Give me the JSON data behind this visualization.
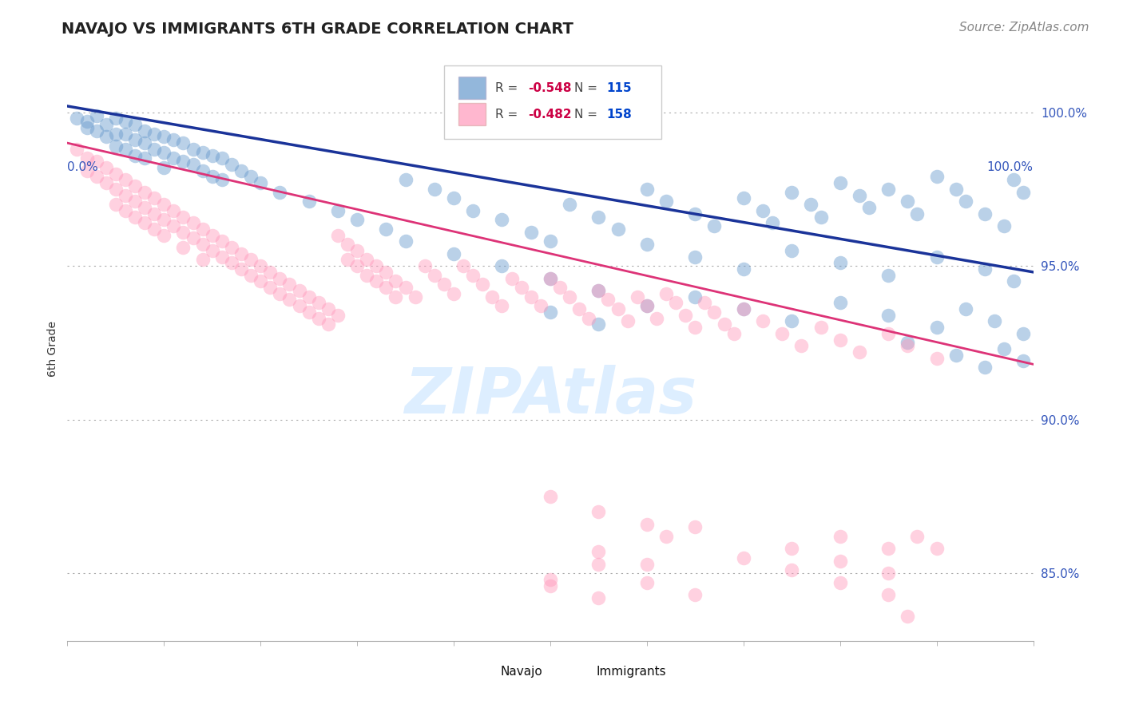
{
  "title": "NAVAJO VS IMMIGRANTS 6TH GRADE CORRELATION CHART",
  "source": "Source: ZipAtlas.com",
  "ylabel": "6th Grade",
  "yticks": [
    0.85,
    0.9,
    0.95,
    1.0
  ],
  "ytick_labels": [
    "85.0%",
    "90.0%",
    "95.0%",
    "100.0%"
  ],
  "xlim": [
    0.0,
    1.0
  ],
  "ylim": [
    0.828,
    1.018
  ],
  "navajo_color": "#6699cc",
  "immigrants_color": "#ff99bb",
  "navajo_line_color": "#1a3399",
  "immigrants_line_color": "#dd3377",
  "tick_color": "#3355bb",
  "navajo_R": -0.548,
  "navajo_N": 115,
  "immigrants_R": -0.482,
  "immigrants_N": 158,
  "background_color": "#ffffff",
  "watermark_color": "#ddeeff",
  "legend_R_color": "#cc0044",
  "legend_N_color": "#0044cc",
  "title_fontsize": 14,
  "axis_label_fontsize": 10,
  "tick_label_fontsize": 11,
  "source_fontsize": 11,
  "navajo_line_x0": 0.0,
  "navajo_line_y0": 1.002,
  "navajo_line_x1": 1.0,
  "navajo_line_y1": 0.948,
  "immigrants_line_x0": 0.0,
  "immigrants_line_y0": 0.99,
  "immigrants_line_x1": 1.0,
  "immigrants_line_y1": 0.918,
  "navajo_points": [
    [
      0.01,
      0.998
    ],
    [
      0.02,
      0.997
    ],
    [
      0.02,
      0.995
    ],
    [
      0.03,
      0.999
    ],
    [
      0.03,
      0.994
    ],
    [
      0.04,
      0.996
    ],
    [
      0.04,
      0.992
    ],
    [
      0.05,
      0.998
    ],
    [
      0.05,
      0.993
    ],
    [
      0.05,
      0.989
    ],
    [
      0.06,
      0.997
    ],
    [
      0.06,
      0.993
    ],
    [
      0.06,
      0.988
    ],
    [
      0.07,
      0.996
    ],
    [
      0.07,
      0.991
    ],
    [
      0.07,
      0.986
    ],
    [
      0.08,
      0.994
    ],
    [
      0.08,
      0.99
    ],
    [
      0.08,
      0.985
    ],
    [
      0.09,
      0.993
    ],
    [
      0.09,
      0.988
    ],
    [
      0.1,
      0.992
    ],
    [
      0.1,
      0.987
    ],
    [
      0.1,
      0.982
    ],
    [
      0.11,
      0.991
    ],
    [
      0.11,
      0.985
    ],
    [
      0.12,
      0.99
    ],
    [
      0.12,
      0.984
    ],
    [
      0.13,
      0.988
    ],
    [
      0.13,
      0.983
    ],
    [
      0.14,
      0.987
    ],
    [
      0.14,
      0.981
    ],
    [
      0.15,
      0.986
    ],
    [
      0.15,
      0.979
    ],
    [
      0.16,
      0.985
    ],
    [
      0.16,
      0.978
    ],
    [
      0.17,
      0.983
    ],
    [
      0.18,
      0.981
    ],
    [
      0.19,
      0.979
    ],
    [
      0.2,
      0.977
    ],
    [
      0.22,
      0.974
    ],
    [
      0.25,
      0.971
    ],
    [
      0.28,
      0.968
    ],
    [
      0.3,
      0.965
    ],
    [
      0.33,
      0.962
    ],
    [
      0.35,
      0.978
    ],
    [
      0.38,
      0.975
    ],
    [
      0.4,
      0.972
    ],
    [
      0.42,
      0.968
    ],
    [
      0.45,
      0.965
    ],
    [
      0.48,
      0.961
    ],
    [
      0.5,
      0.958
    ],
    [
      0.52,
      0.97
    ],
    [
      0.55,
      0.966
    ],
    [
      0.57,
      0.962
    ],
    [
      0.6,
      0.975
    ],
    [
      0.62,
      0.971
    ],
    [
      0.65,
      0.967
    ],
    [
      0.67,
      0.963
    ],
    [
      0.7,
      0.972
    ],
    [
      0.72,
      0.968
    ],
    [
      0.73,
      0.964
    ],
    [
      0.75,
      0.974
    ],
    [
      0.77,
      0.97
    ],
    [
      0.78,
      0.966
    ],
    [
      0.8,
      0.977
    ],
    [
      0.82,
      0.973
    ],
    [
      0.83,
      0.969
    ],
    [
      0.85,
      0.975
    ],
    [
      0.87,
      0.971
    ],
    [
      0.88,
      0.967
    ],
    [
      0.9,
      0.979
    ],
    [
      0.92,
      0.975
    ],
    [
      0.93,
      0.971
    ],
    [
      0.95,
      0.967
    ],
    [
      0.97,
      0.963
    ],
    [
      0.98,
      0.978
    ],
    [
      0.99,
      0.974
    ],
    [
      0.35,
      0.958
    ],
    [
      0.4,
      0.954
    ],
    [
      0.45,
      0.95
    ],
    [
      0.5,
      0.946
    ],
    [
      0.55,
      0.942
    ],
    [
      0.6,
      0.957
    ],
    [
      0.65,
      0.953
    ],
    [
      0.7,
      0.949
    ],
    [
      0.75,
      0.955
    ],
    [
      0.8,
      0.951
    ],
    [
      0.85,
      0.947
    ],
    [
      0.9,
      0.953
    ],
    [
      0.95,
      0.949
    ],
    [
      0.98,
      0.945
    ],
    [
      0.5,
      0.935
    ],
    [
      0.55,
      0.931
    ],
    [
      0.6,
      0.937
    ],
    [
      0.65,
      0.94
    ],
    [
      0.7,
      0.936
    ],
    [
      0.75,
      0.932
    ],
    [
      0.8,
      0.938
    ],
    [
      0.85,
      0.934
    ],
    [
      0.9,
      0.93
    ],
    [
      0.93,
      0.936
    ],
    [
      0.96,
      0.932
    ],
    [
      0.99,
      0.928
    ],
    [
      0.87,
      0.925
    ],
    [
      0.92,
      0.921
    ],
    [
      0.95,
      0.917
    ],
    [
      0.97,
      0.923
    ],
    [
      0.99,
      0.919
    ]
  ],
  "immigrants_points": [
    [
      0.01,
      0.988
    ],
    [
      0.02,
      0.985
    ],
    [
      0.02,
      0.981
    ],
    [
      0.03,
      0.984
    ],
    [
      0.03,
      0.979
    ],
    [
      0.04,
      0.982
    ],
    [
      0.04,
      0.977
    ],
    [
      0.05,
      0.98
    ],
    [
      0.05,
      0.975
    ],
    [
      0.05,
      0.97
    ],
    [
      0.06,
      0.978
    ],
    [
      0.06,
      0.973
    ],
    [
      0.06,
      0.968
    ],
    [
      0.07,
      0.976
    ],
    [
      0.07,
      0.971
    ],
    [
      0.07,
      0.966
    ],
    [
      0.08,
      0.974
    ],
    [
      0.08,
      0.969
    ],
    [
      0.08,
      0.964
    ],
    [
      0.09,
      0.972
    ],
    [
      0.09,
      0.967
    ],
    [
      0.09,
      0.962
    ],
    [
      0.1,
      0.97
    ],
    [
      0.1,
      0.965
    ],
    [
      0.1,
      0.96
    ],
    [
      0.11,
      0.968
    ],
    [
      0.11,
      0.963
    ],
    [
      0.12,
      0.966
    ],
    [
      0.12,
      0.961
    ],
    [
      0.12,
      0.956
    ],
    [
      0.13,
      0.964
    ],
    [
      0.13,
      0.959
    ],
    [
      0.14,
      0.962
    ],
    [
      0.14,
      0.957
    ],
    [
      0.14,
      0.952
    ],
    [
      0.15,
      0.96
    ],
    [
      0.15,
      0.955
    ],
    [
      0.16,
      0.958
    ],
    [
      0.16,
      0.953
    ],
    [
      0.17,
      0.956
    ],
    [
      0.17,
      0.951
    ],
    [
      0.18,
      0.954
    ],
    [
      0.18,
      0.949
    ],
    [
      0.19,
      0.952
    ],
    [
      0.19,
      0.947
    ],
    [
      0.2,
      0.95
    ],
    [
      0.2,
      0.945
    ],
    [
      0.21,
      0.948
    ],
    [
      0.21,
      0.943
    ],
    [
      0.22,
      0.946
    ],
    [
      0.22,
      0.941
    ],
    [
      0.23,
      0.944
    ],
    [
      0.23,
      0.939
    ],
    [
      0.24,
      0.942
    ],
    [
      0.24,
      0.937
    ],
    [
      0.25,
      0.94
    ],
    [
      0.25,
      0.935
    ],
    [
      0.26,
      0.938
    ],
    [
      0.26,
      0.933
    ],
    [
      0.27,
      0.936
    ],
    [
      0.27,
      0.931
    ],
    [
      0.28,
      0.934
    ],
    [
      0.28,
      0.96
    ],
    [
      0.29,
      0.957
    ],
    [
      0.29,
      0.952
    ],
    [
      0.3,
      0.955
    ],
    [
      0.3,
      0.95
    ],
    [
      0.31,
      0.952
    ],
    [
      0.31,
      0.947
    ],
    [
      0.32,
      0.95
    ],
    [
      0.32,
      0.945
    ],
    [
      0.33,
      0.948
    ],
    [
      0.33,
      0.943
    ],
    [
      0.34,
      0.945
    ],
    [
      0.34,
      0.94
    ],
    [
      0.35,
      0.943
    ],
    [
      0.36,
      0.94
    ],
    [
      0.37,
      0.95
    ],
    [
      0.38,
      0.947
    ],
    [
      0.39,
      0.944
    ],
    [
      0.4,
      0.941
    ],
    [
      0.41,
      0.95
    ],
    [
      0.42,
      0.947
    ],
    [
      0.43,
      0.944
    ],
    [
      0.44,
      0.94
    ],
    [
      0.45,
      0.937
    ],
    [
      0.46,
      0.946
    ],
    [
      0.47,
      0.943
    ],
    [
      0.48,
      0.94
    ],
    [
      0.49,
      0.937
    ],
    [
      0.5,
      0.946
    ],
    [
      0.51,
      0.943
    ],
    [
      0.52,
      0.94
    ],
    [
      0.53,
      0.936
    ],
    [
      0.54,
      0.933
    ],
    [
      0.55,
      0.942
    ],
    [
      0.56,
      0.939
    ],
    [
      0.57,
      0.936
    ],
    [
      0.58,
      0.932
    ],
    [
      0.59,
      0.94
    ],
    [
      0.6,
      0.937
    ],
    [
      0.61,
      0.933
    ],
    [
      0.62,
      0.941
    ],
    [
      0.63,
      0.938
    ],
    [
      0.64,
      0.934
    ],
    [
      0.65,
      0.93
    ],
    [
      0.66,
      0.938
    ],
    [
      0.67,
      0.935
    ],
    [
      0.68,
      0.931
    ],
    [
      0.69,
      0.928
    ],
    [
      0.7,
      0.936
    ],
    [
      0.72,
      0.932
    ],
    [
      0.74,
      0.928
    ],
    [
      0.76,
      0.924
    ],
    [
      0.78,
      0.93
    ],
    [
      0.8,
      0.926
    ],
    [
      0.82,
      0.922
    ],
    [
      0.85,
      0.928
    ],
    [
      0.87,
      0.924
    ],
    [
      0.9,
      0.92
    ],
    [
      0.5,
      0.875
    ],
    [
      0.55,
      0.87
    ],
    [
      0.6,
      0.866
    ],
    [
      0.62,
      0.862
    ],
    [
      0.5,
      0.846
    ],
    [
      0.55,
      0.842
    ],
    [
      0.65,
      0.865
    ],
    [
      0.55,
      0.857
    ],
    [
      0.6,
      0.853
    ],
    [
      0.5,
      0.848
    ],
    [
      0.75,
      0.858
    ],
    [
      0.8,
      0.862
    ],
    [
      0.85,
      0.858
    ],
    [
      0.88,
      0.862
    ],
    [
      0.9,
      0.858
    ],
    [
      0.8,
      0.854
    ],
    [
      0.85,
      0.85
    ],
    [
      0.55,
      0.853
    ],
    [
      0.6,
      0.847
    ],
    [
      0.65,
      0.843
    ],
    [
      0.7,
      0.855
    ],
    [
      0.75,
      0.851
    ],
    [
      0.8,
      0.847
    ],
    [
      0.85,
      0.843
    ],
    [
      0.87,
      0.836
    ]
  ]
}
